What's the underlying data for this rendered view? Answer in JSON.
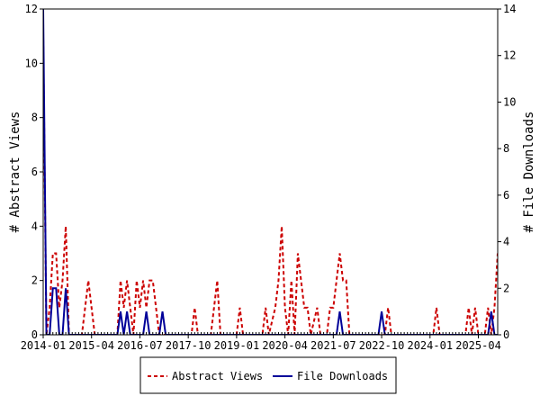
{
  "chart_data": {
    "type": "line",
    "x_axis": {
      "type": "date",
      "min": "2014-01",
      "max": "2025-10",
      "tick_labels": [
        "2014-01",
        "2015-04",
        "2016-07",
        "2017-10",
        "2019-01",
        "2020-04",
        "2021-07",
        "2022-10",
        "2024-01",
        "2025-04"
      ]
    },
    "y_left": {
      "label": "# Abstract Views",
      "min": 0,
      "max": 12,
      "ticks": [
        0,
        2,
        4,
        6,
        8,
        10,
        12
      ]
    },
    "y_right": {
      "label": "# File Downloads",
      "min": 0,
      "max": 14,
      "ticks": [
        0,
        2,
        4,
        6,
        8,
        10,
        12,
        14
      ]
    },
    "grid": false,
    "legend": {
      "placement": "bottom-center"
    },
    "series": [
      {
        "name": "Abstract Views",
        "axis": "left",
        "color": "#cc0000",
        "style": "dashed",
        "points": [
          [
            "2013-12",
            0
          ],
          [
            "2014-01",
            11
          ],
          [
            "2014-02",
            0
          ],
          [
            "2014-03",
            1
          ],
          [
            "2014-04",
            3
          ],
          [
            "2014-05",
            3
          ],
          [
            "2014-06",
            1
          ],
          [
            "2014-07",
            2
          ],
          [
            "2014-08",
            4
          ],
          [
            "2014-09",
            0
          ],
          [
            "2015-01",
            0
          ],
          [
            "2015-02",
            1
          ],
          [
            "2015-03",
            2
          ],
          [
            "2015-04",
            1
          ],
          [
            "2015-05",
            0
          ],
          [
            "2015-12",
            0
          ],
          [
            "2016-01",
            2
          ],
          [
            "2016-02",
            1
          ],
          [
            "2016-03",
            2
          ],
          [
            "2016-04",
            1
          ],
          [
            "2016-05",
            0
          ],
          [
            "2016-06",
            2
          ],
          [
            "2016-07",
            1
          ],
          [
            "2016-08",
            2
          ],
          [
            "2016-09",
            1
          ],
          [
            "2016-10",
            2
          ],
          [
            "2016-11",
            2
          ],
          [
            "2016-12",
            1
          ],
          [
            "2017-01",
            0
          ],
          [
            "2017-11",
            0
          ],
          [
            "2017-12",
            1
          ],
          [
            "2018-01",
            0
          ],
          [
            "2018-05",
            0
          ],
          [
            "2018-06",
            1
          ],
          [
            "2018-07",
            2
          ],
          [
            "2018-08",
            0
          ],
          [
            "2019-01",
            0
          ],
          [
            "2019-02",
            1
          ],
          [
            "2019-03",
            0
          ],
          [
            "2019-09",
            0
          ],
          [
            "2019-10",
            1
          ],
          [
            "2019-11",
            0
          ],
          [
            "2020-01",
            1
          ],
          [
            "2020-02",
            2
          ],
          [
            "2020-03",
            4
          ],
          [
            "2020-04",
            1
          ],
          [
            "2020-05",
            0
          ],
          [
            "2020-06",
            2
          ],
          [
            "2020-07",
            0
          ],
          [
            "2020-08",
            3
          ],
          [
            "2020-09",
            2
          ],
          [
            "2020-10",
            1
          ],
          [
            "2020-11",
            1
          ],
          [
            "2020-12",
            0
          ],
          [
            "2021-02",
            1
          ],
          [
            "2021-03",
            0
          ],
          [
            "2021-05",
            0
          ],
          [
            "2021-06",
            1
          ],
          [
            "2021-07",
            1
          ],
          [
            "2021-08",
            2
          ],
          [
            "2021-09",
            3
          ],
          [
            "2021-10",
            2
          ],
          [
            "2021-11",
            2
          ],
          [
            "2021-12",
            0
          ],
          [
            "2022-11",
            0
          ],
          [
            "2022-12",
            1
          ],
          [
            "2023-01",
            0
          ],
          [
            "2024-02",
            0
          ],
          [
            "2024-03",
            1
          ],
          [
            "2024-04",
            0
          ],
          [
            "2024-12",
            0
          ],
          [
            "2025-01",
            1
          ],
          [
            "2025-02",
            0
          ],
          [
            "2025-03",
            1
          ],
          [
            "2025-04",
            0
          ],
          [
            "2025-06",
            0
          ],
          [
            "2025-07",
            1
          ],
          [
            "2025-08",
            0
          ],
          [
            "2025-09",
            1
          ],
          [
            "2025-10",
            3
          ]
        ]
      },
      {
        "name": "File Downloads",
        "axis": "right",
        "color": "#000099",
        "style": "solid",
        "points": [
          [
            "2013-12",
            0
          ],
          [
            "2014-01",
            14
          ],
          [
            "2014-02",
            0
          ],
          [
            "2014-03",
            0
          ],
          [
            "2014-04",
            2
          ],
          [
            "2014-05",
            2
          ],
          [
            "2014-06",
            0
          ],
          [
            "2014-07",
            0
          ],
          [
            "2014-08",
            2
          ],
          [
            "2014-09",
            0
          ],
          [
            "2015-12",
            0
          ],
          [
            "2016-01",
            1
          ],
          [
            "2016-02",
            0
          ],
          [
            "2016-03",
            1
          ],
          [
            "2016-04",
            0
          ],
          [
            "2016-08",
            0
          ],
          [
            "2016-09",
            1
          ],
          [
            "2016-10",
            0
          ],
          [
            "2017-01",
            0
          ],
          [
            "2017-02",
            1
          ],
          [
            "2017-03",
            0
          ],
          [
            "2021-08",
            0
          ],
          [
            "2021-09",
            1
          ],
          [
            "2021-10",
            0
          ],
          [
            "2022-09",
            0
          ],
          [
            "2022-10",
            1
          ],
          [
            "2022-11",
            0
          ],
          [
            "2025-07",
            0
          ],
          [
            "2025-08",
            1
          ],
          [
            "2025-09",
            0
          ],
          [
            "2025-10",
            0
          ]
        ]
      }
    ]
  }
}
